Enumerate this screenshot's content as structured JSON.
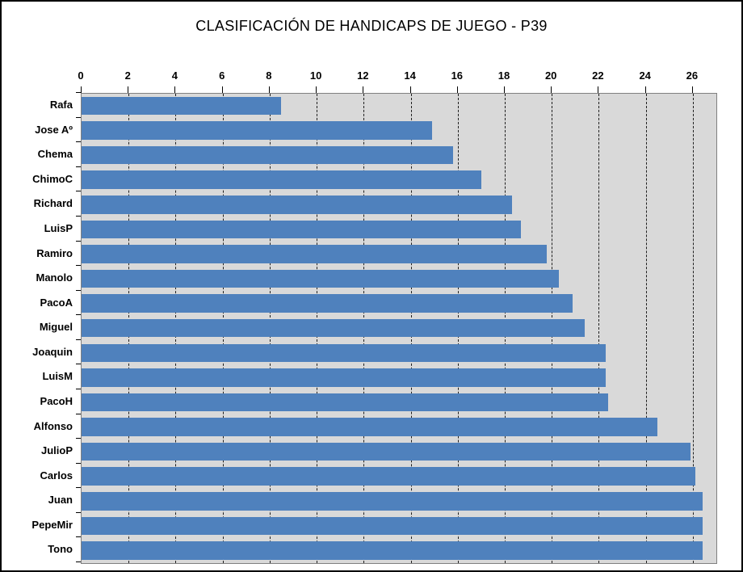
{
  "window": {
    "title": "CLASIFICACIÓN DE HANDICAPS DE JUEGO - P39"
  },
  "chart_data": {
    "type": "bar",
    "orientation": "horizontal",
    "title": "CLASIFICACIÓN DE HANDICAPS DE JUEGO - P39",
    "categories": [
      "Rafa",
      "Jose Aº",
      "Chema",
      "ChimoC",
      "Richard",
      "LuisP",
      "Ramiro",
      "Manolo",
      "PacoA",
      "Miguel",
      "Joaquin",
      "LuisM",
      "PacoH",
      "Alfonso",
      "JulioP",
      "Carlos",
      "Juan",
      "PepeMir",
      "Tono"
    ],
    "values": [
      8.5,
      14.9,
      15.8,
      17.0,
      18.3,
      18.7,
      19.8,
      20.3,
      20.9,
      21.4,
      22.3,
      22.3,
      22.4,
      24.5,
      25.9,
      26.1,
      26.4,
      26.4,
      26.4
    ],
    "xlabel": "",
    "ylabel": "",
    "xlim": [
      0,
      27
    ],
    "x_ticks": [
      0,
      2,
      4,
      6,
      8,
      10,
      12,
      14,
      16,
      18,
      20,
      22,
      24,
      26
    ],
    "grid": "vertical-dashed",
    "legend": "none",
    "colors": {
      "bar": "#4f81bd",
      "plot_bg": "#d9d9d9",
      "plot_border": "#808080",
      "grid": "#1f1f1f",
      "text": "#000000",
      "page_bg": "#ffffff",
      "frame_border": "#000000"
    }
  }
}
